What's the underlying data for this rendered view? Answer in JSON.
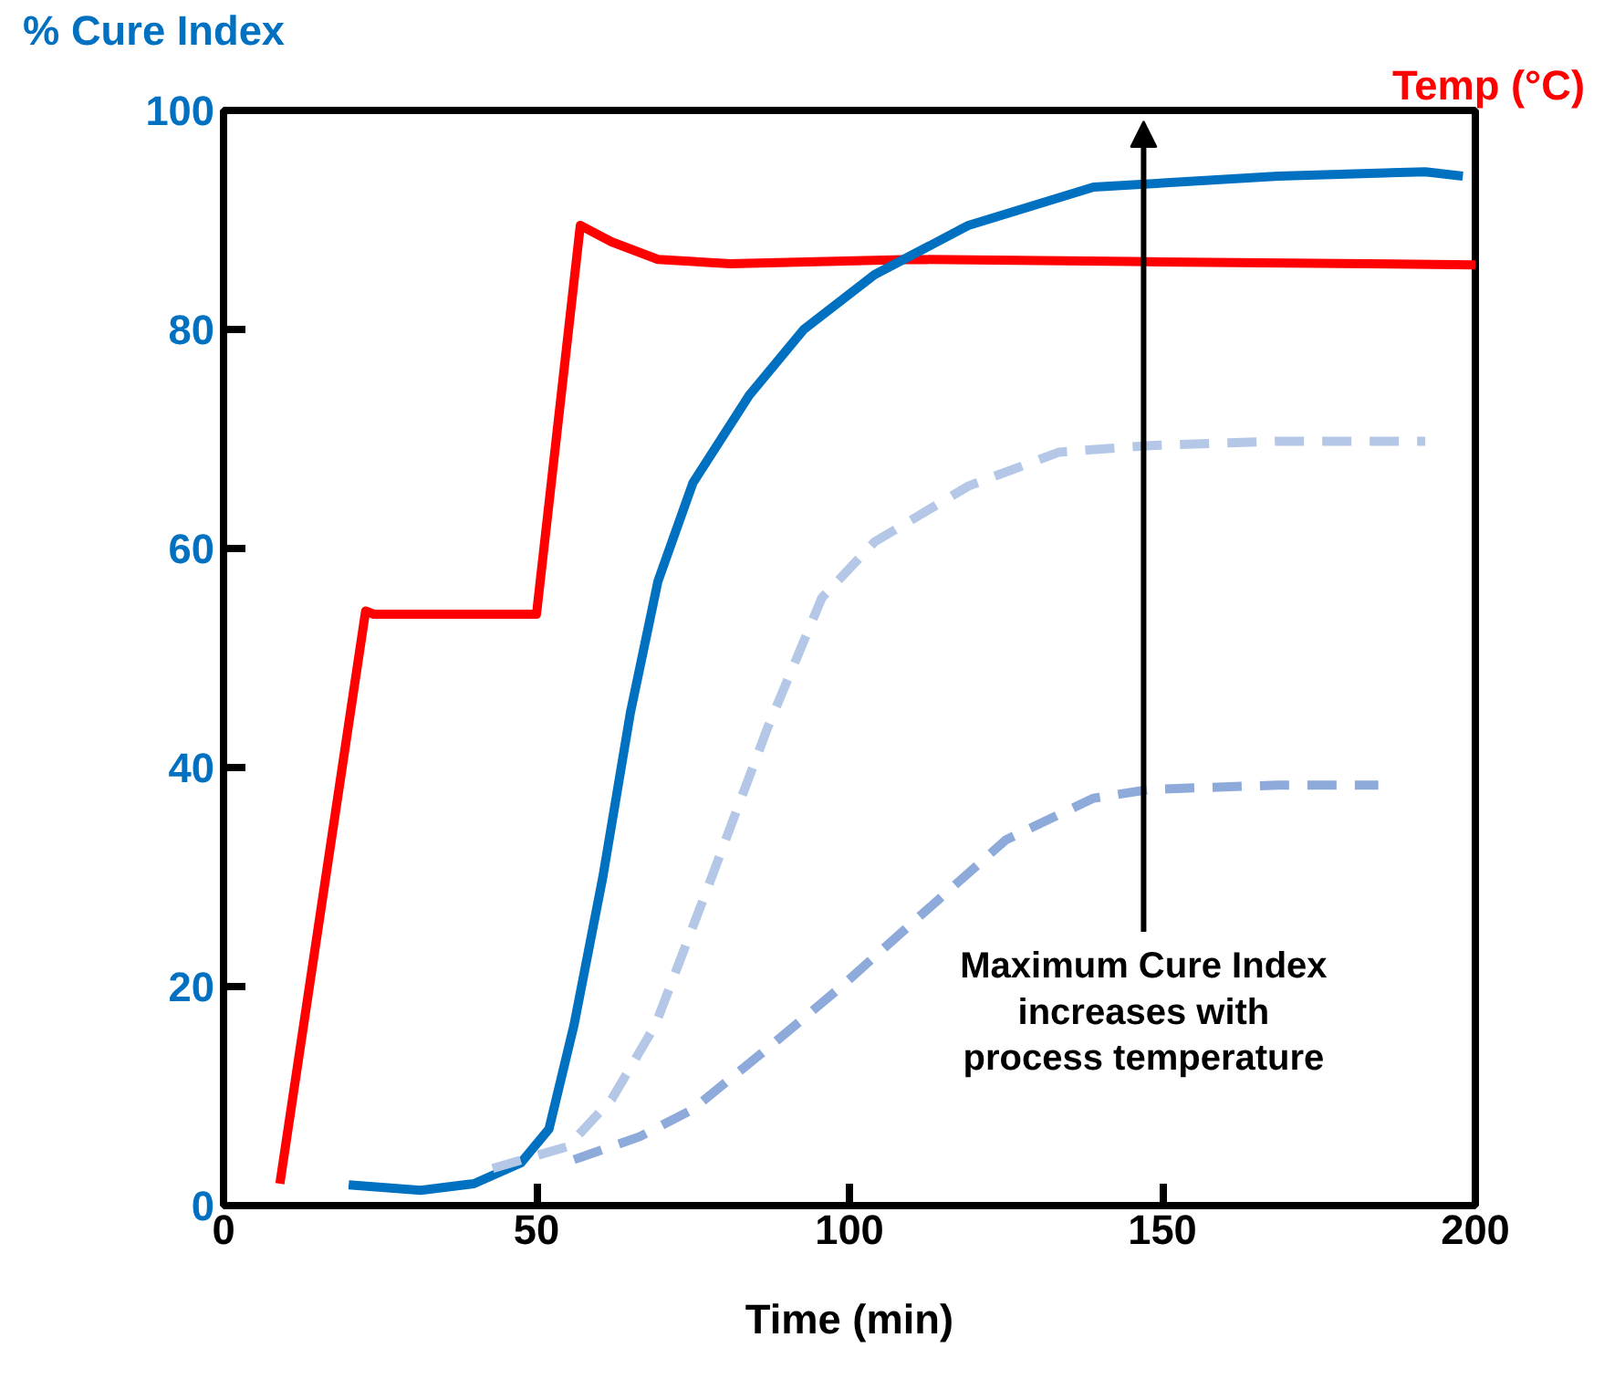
{
  "chart_data": {
    "type": "line",
    "xlabel": "Time (min)",
    "ylabel": "% Cure Index",
    "y2label": "Temp (°C)",
    "xlim": [
      0,
      200
    ],
    "xticks": [
      0,
      50,
      100,
      150,
      200
    ],
    "ylim": [
      0,
      100
    ],
    "yticks": [
      0,
      20,
      40,
      60,
      80,
      100
    ],
    "grid": false,
    "marker": "none",
    "series": [
      {
        "color": "#ff0000",
        "line_style": "solid",
        "x": [
          9,
          22.7,
          24,
          50,
          57,
          62,
          69.4,
          81,
          110,
          145,
          200
        ],
        "values": [
          2,
          54.3,
          54,
          54,
          89.5,
          88,
          86.4,
          86,
          86.4,
          86.2,
          85.9
        ]
      },
      {
        "color": "#0070c0",
        "line_style": "solid",
        "x": [
          20,
          31.5,
          40,
          47.5,
          52,
          56,
          60.6,
          65,
          69.4,
          75,
          84,
          92.7,
          104,
          119,
          139,
          168.5,
          192,
          198
        ],
        "values": [
          1.9,
          1.4,
          2,
          3.9,
          7,
          16.5,
          30,
          45,
          57,
          66,
          74,
          80,
          85,
          89.5,
          93,
          94,
          94.4,
          94
        ]
      },
      {
        "color": "#b4c7e7",
        "line_style": "dashed",
        "x": [
          43,
          55,
          62,
          69,
          78,
          86.9,
          95.6,
          104,
          119,
          133.5,
          148,
          168.5,
          192
        ],
        "values": [
          3.4,
          5.4,
          9.7,
          16.5,
          30,
          43.6,
          55.5,
          60.6,
          65.7,
          68.8,
          69.4,
          69.8,
          69.8
        ]
      },
      {
        "color": "#8eaadb",
        "line_style": "dashed",
        "x": [
          56,
          66.5,
          75,
          87,
          98.5,
          110,
          125,
          139,
          148,
          168.5,
          184.5
        ],
        "values": [
          4.2,
          6.3,
          8.8,
          14.4,
          19.9,
          25.8,
          33.4,
          37.2,
          38,
          38.4,
          38.4
        ]
      }
    ],
    "annotations": [
      "Maximum Cure Index\nincreases with\nprocess temperature"
    ]
  }
}
